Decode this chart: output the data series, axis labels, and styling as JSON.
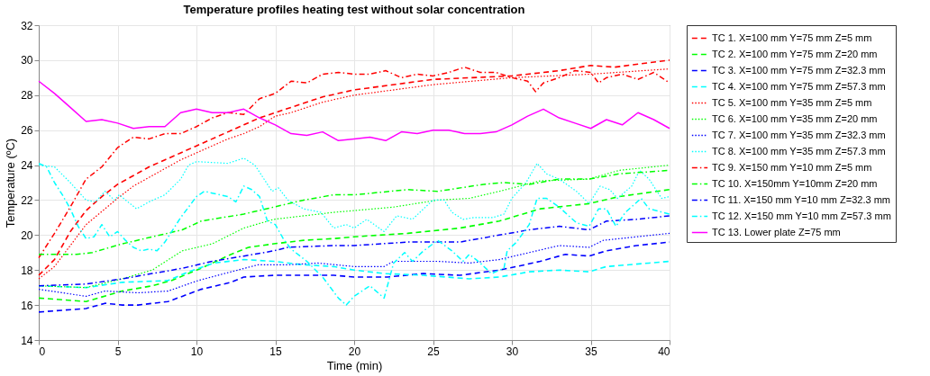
{
  "chart_data": {
    "type": "line",
    "title": "Temperature profiles heating test without solar concentration",
    "xlabel": "Time (min)",
    "ylabel": "Temperature (ºC)",
    "xlim": [
      0,
      40
    ],
    "xticks": [
      0,
      5,
      10,
      15,
      20,
      25,
      30,
      35,
      40
    ],
    "ylim": [
      14,
      32
    ],
    "yticks": [
      14,
      16,
      18,
      20,
      22,
      24,
      26,
      28,
      30,
      32
    ],
    "grid": true,
    "legend": "right",
    "marker": "none",
    "series": [
      {
        "name": "TC 1. X=100 mm Y=75 mm Z=5 mm",
        "color": "#ff0000",
        "line_style": "dashed",
        "x": [
          0,
          1,
          2,
          3,
          4,
          5,
          6,
          7,
          8,
          9,
          10,
          11,
          12,
          13,
          14,
          15,
          16,
          17,
          18,
          19,
          20,
          25,
          30,
          33,
          35,
          36.5,
          40
        ],
        "values": [
          17.7,
          18.6,
          20.2,
          21.4,
          22.2,
          22.9,
          23.4,
          23.9,
          24.3,
          24.7,
          25.1,
          25.5,
          25.9,
          26.3,
          26.7,
          27.0,
          27.3,
          27.6,
          27.9,
          28.1,
          28.3,
          28.9,
          29.1,
          29.4,
          29.7,
          29.6,
          30.0
        ]
      },
      {
        "name": "TC 2. X=100 mm Y=75 mm Z=20 mm",
        "color": "#00ff00",
        "line_style": "dashed",
        "x": [
          0,
          3,
          5.3,
          7.2,
          8.4,
          10.3,
          12.2,
          13.3,
          14.9,
          16.8,
          18.7,
          20,
          23.4,
          26.7,
          29.2,
          31.8,
          34.9,
          36.8,
          40
        ],
        "values": [
          16.4,
          16.2,
          16.8,
          17.1,
          17.4,
          18.1,
          18.9,
          19.3,
          19.5,
          19.7,
          19.8,
          19.9,
          20.1,
          20.4,
          20.8,
          21.5,
          21.8,
          22.2,
          22.6
        ]
      },
      {
        "name": "TC 3. X=100 mm Y=75 mm Z=32.3 mm",
        "color": "#0000ff",
        "line_style": "dashed",
        "x": [
          0,
          3,
          4.2,
          5.3,
          6.3,
          8.2,
          9.1,
          10.3,
          12.2,
          13,
          14.9,
          16.8,
          18.7,
          20,
          22.1,
          24.4,
          26.7,
          29.2,
          30.3,
          31.8,
          33.4,
          34.9,
          36,
          37.9,
          40
        ],
        "values": [
          15.6,
          15.8,
          16.1,
          16.0,
          16.0,
          16.2,
          16.5,
          16.9,
          17.3,
          17.6,
          17.7,
          17.7,
          17.7,
          17.6,
          17.6,
          17.8,
          17.7,
          18.0,
          18.2,
          18.5,
          18.9,
          18.8,
          19.1,
          19.4,
          19.6
        ]
      },
      {
        "name": "TC 4. X=100 mm Y=75 mm Z=57.3 mm",
        "color": "#00ffff",
        "line_style": "dashed",
        "x": [
          0,
          3,
          5.3,
          8.2,
          9.5,
          11.1,
          13,
          14.9,
          16.8,
          18.7,
          20,
          21.9,
          24.4,
          27.3,
          29.2,
          31.1,
          33,
          34.9,
          36,
          38.7,
          40
        ],
        "values": [
          17.1,
          17.0,
          17.3,
          17.4,
          17.9,
          18.4,
          18.6,
          18.5,
          18.3,
          18.2,
          18.0,
          17.8,
          17.7,
          17.5,
          17.6,
          17.9,
          18.0,
          17.9,
          18.2,
          18.4,
          18.5
        ]
      },
      {
        "name": "TC 5. X=100 mm Y=35 mm Z=5 mm",
        "color": "#ff0000",
        "line_style": "dotted",
        "x": [
          0,
          1,
          2,
          3,
          5,
          6,
          7,
          8,
          9,
          10,
          11,
          12,
          13,
          14,
          15,
          16,
          17,
          18,
          19,
          20,
          25,
          30,
          35,
          40
        ],
        "values": [
          17.5,
          18.2,
          19.4,
          20.6,
          22.1,
          22.8,
          23.3,
          23.8,
          24.3,
          24.7,
          25.1,
          25.5,
          25.8,
          26.2,
          26.8,
          27.0,
          27.3,
          27.6,
          27.8,
          28.0,
          28.6,
          29.0,
          29.2,
          29.5
        ]
      },
      {
        "name": "TC 6. X=100 mm Y=35 mm Z=20 mm",
        "color": "#00ff00",
        "line_style": "dotted",
        "x": [
          0,
          3,
          5.3,
          7.2,
          9.1,
          11,
          13,
          14.9,
          16.8,
          18.7,
          20,
          22.5,
          25.3,
          27.3,
          29.2,
          31.8,
          34.9,
          36.8,
          40
        ],
        "values": [
          17.1,
          17.0,
          17.5,
          18.0,
          19.1,
          19.5,
          20.4,
          20.9,
          21.1,
          21.3,
          21.4,
          21.6,
          22.0,
          22.1,
          22.5,
          23.1,
          23.2,
          23.7,
          24.0
        ]
      },
      {
        "name": "TC 7. X=100 mm Y=35 mm Z=32.3 mm",
        "color": "#0000ff",
        "line_style": "dotted",
        "x": [
          0,
          3,
          4.2,
          6.3,
          8.2,
          10.1,
          12.2,
          13.9,
          15.8,
          17.7,
          20,
          21.9,
          22.5,
          25.3,
          27.3,
          29.2,
          31.1,
          33,
          34.9,
          35.8,
          37.9,
          40
        ],
        "values": [
          16.9,
          16.5,
          16.8,
          16.7,
          16.8,
          17.4,
          17.9,
          18.3,
          18.3,
          18.4,
          18.2,
          18.2,
          18.5,
          18.5,
          18.4,
          18.6,
          19.0,
          19.4,
          19.3,
          19.7,
          19.9,
          20.1
        ]
      },
      {
        "name": "TC 8. X=100 mm Y=35 mm Z=57.3 mm",
        "color": "#00ffff",
        "line_style": "dotted",
        "x": [
          0,
          1,
          2,
          3,
          3.6,
          4.2,
          4.8,
          5.1,
          6.2,
          7,
          8,
          9,
          9.5,
          10,
          12,
          13,
          13.7,
          14.8,
          15.2,
          15.8,
          16.8,
          17.9,
          18.7,
          19.5,
          20,
          20.8,
          21.9,
          22.7,
          23.7,
          24.4,
          25,
          25.7,
          26.2,
          26.9,
          27.6,
          28.8,
          29.5,
          30,
          30.9,
          31.6,
          32.2,
          33,
          34.1,
          34.9,
          35.6,
          36.2,
          36.7,
          37.6,
          38.1,
          38.7,
          39.5,
          40
        ],
        "values": [
          24.0,
          23.9,
          23.0,
          22.0,
          21.9,
          22.5,
          22.0,
          22.3,
          21.5,
          21.9,
          22.3,
          23.2,
          24.0,
          24.2,
          24.1,
          24.4,
          24.0,
          22.5,
          22.7,
          22.0,
          21.5,
          21.3,
          20.4,
          20.6,
          20.4,
          20.9,
          20.2,
          21.1,
          20.9,
          21.5,
          22.0,
          22.0,
          21.3,
          20.9,
          21.0,
          21.0,
          21.2,
          22.1,
          23.0,
          24.1,
          23.5,
          23.2,
          22.5,
          21.8,
          22.8,
          22.6,
          22.1,
          22.8,
          23.7,
          23.2,
          22.1,
          22.2
        ]
      },
      {
        "name": "TC 9. X=150 mm Y=10 mm Z=5 mm",
        "color": "#ff0000",
        "line_style": "dashdot",
        "x": [
          0,
          1,
          2,
          3,
          4,
          5,
          6,
          7,
          8,
          9,
          10,
          11,
          12,
          13,
          14,
          15,
          16,
          17,
          18,
          19,
          20,
          21,
          22,
          23,
          24,
          25,
          26,
          27,
          28,
          29,
          30,
          31,
          31.5,
          32,
          33,
          34,
          35,
          35.5,
          36,
          37,
          38,
          39,
          40
        ],
        "values": [
          18.7,
          20.1,
          21.6,
          23.2,
          23.9,
          25.0,
          25.6,
          25.5,
          25.8,
          25.8,
          26.2,
          26.7,
          27.0,
          26.9,
          27.8,
          28.1,
          28.8,
          28.7,
          29.2,
          29.3,
          29.2,
          29.2,
          29.4,
          29.0,
          29.2,
          29.1,
          29.3,
          29.6,
          29.3,
          29.3,
          29.0,
          28.8,
          28.2,
          28.7,
          29.0,
          29.4,
          29.3,
          28.7,
          29.0,
          29.2,
          28.9,
          29.3,
          28.7
        ]
      },
      {
        "name": "TC 10. X=150mm Y=10mm Z=20 mm",
        "color": "#00ff00",
        "line_style": "dashdot",
        "x": [
          0,
          2.4,
          3.4,
          5.3,
          7.2,
          9.1,
          10.3,
          13,
          14.9,
          16.8,
          18.7,
          20,
          23.4,
          25.3,
          28.2,
          29.5,
          31.1,
          33,
          34.9,
          36.8,
          40
        ],
        "values": [
          18.9,
          18.9,
          19.0,
          19.5,
          19.9,
          20.3,
          20.8,
          21.2,
          21.6,
          22.0,
          22.3,
          22.3,
          22.6,
          22.5,
          22.9,
          23.0,
          22.9,
          23.2,
          23.2,
          23.5,
          23.7
        ]
      },
      {
        "name": "TC 11. X=150 mm Y=10 mm Z=32.3 mm",
        "color": "#0000ff",
        "line_style": "dashdot",
        "x": [
          0,
          3,
          5.3,
          7.2,
          9.1,
          11,
          13,
          14.9,
          15.8,
          18.7,
          20,
          23.4,
          26.7,
          29.2,
          31.1,
          33,
          34.9,
          36,
          37.9,
          40
        ],
        "values": [
          17.1,
          17.2,
          17.5,
          17.8,
          18.1,
          18.5,
          18.8,
          19.1,
          19.3,
          19.4,
          19.4,
          19.6,
          19.6,
          20.0,
          20.3,
          20.5,
          20.3,
          20.8,
          20.9,
          21.1
        ]
      },
      {
        "name": "TC 12. X=150 mm Y=10 mm Z=57.3 mm",
        "color": "#00ffff",
        "line_style": "dashdot",
        "x": [
          0,
          0.5,
          1,
          1.5,
          2,
          2.5,
          3,
          3.5,
          4,
          4.5,
          5,
          5.5,
          6,
          6.5,
          7,
          7.5,
          8,
          9,
          10,
          10.5,
          11,
          12,
          12.5,
          13,
          13.5,
          14,
          14.5,
          15,
          15.5,
          16,
          17,
          18,
          19,
          19.5,
          20,
          21,
          21.9,
          22.5,
          23.2,
          23.7,
          24.4,
          25.3,
          26.2,
          26.9,
          27.3,
          28,
          28.7,
          29.5,
          29.7,
          30.3,
          31.1,
          31.6,
          32.2,
          33,
          34.1,
          34.9,
          35.5,
          36,
          36.6,
          37.2,
          38.2,
          38.7,
          40
        ],
        "values": [
          24.1,
          23.9,
          23.0,
          22.3,
          21.5,
          20.5,
          19.8,
          19.9,
          20.6,
          19.9,
          20.2,
          19.7,
          19.3,
          19.1,
          19.2,
          19.1,
          19.6,
          21.0,
          22.2,
          22.5,
          22.4,
          22.2,
          21.9,
          22.8,
          22.6,
          22.2,
          20.8,
          20.6,
          19.8,
          19.2,
          18.5,
          17.6,
          16.4,
          16.0,
          16.5,
          17.1,
          16.4,
          18.4,
          19.0,
          18.5,
          19.1,
          19.7,
          19.1,
          18.5,
          18.9,
          18.4,
          17.8,
          18.1,
          19.1,
          19.6,
          20.6,
          22.1,
          22.1,
          21.6,
          20.7,
          20.5,
          21.5,
          21.5,
          20.5,
          21.3,
          22.1,
          21.5,
          21.2
        ]
      },
      {
        "name": "TC 13. Lower plate Z=75 mm",
        "color": "#ff00ff",
        "line_style": "solid",
        "x": [
          0,
          1,
          2,
          3,
          4,
          5,
          6,
          7,
          8,
          9,
          10,
          11,
          12,
          13,
          14,
          15,
          16,
          17,
          18,
          19,
          20,
          21,
          22,
          23,
          24,
          25,
          26,
          27,
          28,
          29,
          30,
          31,
          32,
          33,
          34,
          35,
          36,
          37,
          38,
          39,
          40
        ],
        "values": [
          28.8,
          28.1,
          27.3,
          26.5,
          26.6,
          26.4,
          26.1,
          26.2,
          26.2,
          27.0,
          27.2,
          27.0,
          27.0,
          27.2,
          26.7,
          26.3,
          25.8,
          25.7,
          25.9,
          25.4,
          25.5,
          25.6,
          25.4,
          25.9,
          25.8,
          26.0,
          26.0,
          25.8,
          25.8,
          25.9,
          26.3,
          26.8,
          27.2,
          26.7,
          26.4,
          26.1,
          26.6,
          26.3,
          27.0,
          26.6,
          26.1
        ]
      }
    ]
  }
}
